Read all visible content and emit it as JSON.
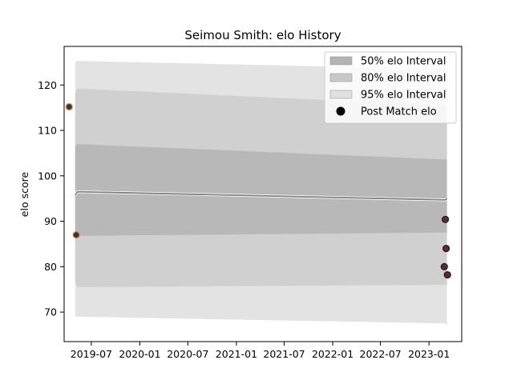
{
  "chart_data": {
    "type": "area",
    "title": "Seimou Smith: elo History",
    "xlabel": "",
    "ylabel": "elo score",
    "x_axis": "date",
    "xlim": [
      "2019-03-20",
      "2023-05-05"
    ],
    "ylim": [
      63.5,
      128.5
    ],
    "xticks": [
      {
        "date": "2019-07-01",
        "label": "2019-07"
      },
      {
        "date": "2020-01-01",
        "label": "2020-01"
      },
      {
        "date": "2020-07-01",
        "label": "2020-07"
      },
      {
        "date": "2021-01-01",
        "label": "2021-01"
      },
      {
        "date": "2021-07-01",
        "label": "2021-07"
      },
      {
        "date": "2022-01-01",
        "label": "2022-01"
      },
      {
        "date": "2022-07-01",
        "label": "2022-07"
      },
      {
        "date": "2023-01-01",
        "label": "2023-01"
      }
    ],
    "yticks": [
      70,
      80,
      90,
      100,
      110,
      120
    ],
    "grid": false,
    "legend_position": "top-right",
    "mean_line": {
      "color": "#808080",
      "points": [
        {
          "date": "2019-05-01",
          "y": 95.8
        },
        {
          "date": "2019-05-10",
          "y": 96.5
        },
        {
          "date": "2023-03-05",
          "y": 94.7
        },
        {
          "date": "2023-03-10",
          "y": 95.0
        }
      ]
    },
    "intervals": [
      {
        "name": "95% elo Interval",
        "color": "#e3e3e3",
        "upper": [
          {
            "date": "2019-05-01",
            "y": 125.0
          },
          {
            "date": "2019-05-10",
            "y": 125.3
          },
          {
            "date": "2023-03-05",
            "y": 123.5
          },
          {
            "date": "2023-03-10",
            "y": 123.5
          }
        ],
        "lower": [
          {
            "date": "2019-05-01",
            "y": 69.0
          },
          {
            "date": "2019-05-10",
            "y": 69.0
          },
          {
            "date": "2023-03-05",
            "y": 67.5
          },
          {
            "date": "2023-03-10",
            "y": 66.5
          }
        ]
      },
      {
        "name": "80% elo Interval",
        "color": "#d0d0d0",
        "upper": [
          {
            "date": "2019-05-01",
            "y": 118.5
          },
          {
            "date": "2019-05-10",
            "y": 119.2
          },
          {
            "date": "2023-03-05",
            "y": 115.5
          },
          {
            "date": "2023-03-10",
            "y": 115.5
          }
        ],
        "lower": [
          {
            "date": "2019-05-01",
            "y": 76.5
          },
          {
            "date": "2019-05-10",
            "y": 75.5
          },
          {
            "date": "2023-03-05",
            "y": 76.0
          },
          {
            "date": "2023-03-10",
            "y": 76.0
          }
        ]
      },
      {
        "name": "50% elo Interval",
        "color": "#b8b8b8",
        "upper": [
          {
            "date": "2019-05-01",
            "y": 106.5
          },
          {
            "date": "2019-05-10",
            "y": 107.0
          },
          {
            "date": "2023-03-05",
            "y": 103.6
          },
          {
            "date": "2023-03-10",
            "y": 103.6
          }
        ],
        "lower": [
          {
            "date": "2019-05-01",
            "y": 86.5
          },
          {
            "date": "2019-05-10",
            "y": 86.8
          },
          {
            "date": "2023-03-05",
            "y": 87.5
          },
          {
            "date": "2023-03-10",
            "y": 87.5
          }
        ]
      }
    ],
    "points": {
      "name": "Post Match elo",
      "legend_color": "#000000",
      "items": [
        {
          "date": "2019-04-08",
          "y": 115.2,
          "fill": "#1f3a5f",
          "edge": "#ff7f0e"
        },
        {
          "date": "2019-05-05",
          "y": 87.0,
          "fill": "#1f3a5f",
          "edge": "#ff7f0e"
        },
        {
          "date": "2023-02-28",
          "y": 80.0,
          "fill": "#5a2a2e",
          "edge": "#2a1a1a"
        },
        {
          "date": "2023-03-04",
          "y": 90.4,
          "fill": "#5a2a2e",
          "edge": "#2a1a1a"
        },
        {
          "date": "2023-03-07",
          "y": 84.0,
          "fill": "#5a2a2e",
          "edge": "#2a1a1a"
        },
        {
          "date": "2023-03-12",
          "y": 78.2,
          "fill": "#5a2a2e",
          "edge": "#2a1a1a"
        }
      ]
    },
    "legend": [
      {
        "label": "50% elo Interval",
        "kind": "patch",
        "color": "#b3b3b3"
      },
      {
        "label": "80% elo Interval",
        "kind": "patch",
        "color": "#c8c8c8"
      },
      {
        "label": "95% elo Interval",
        "kind": "patch",
        "color": "#e0e0e0"
      },
      {
        "label": "Post Match elo",
        "kind": "marker",
        "color": "#000000"
      }
    ]
  }
}
